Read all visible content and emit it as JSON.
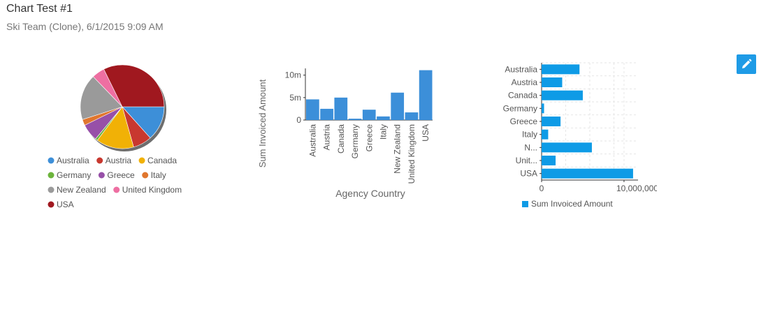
{
  "header": {
    "title": "Chart Test #1",
    "subtitle": "Ski Team (Clone), 6/1/2015 9:09 AM"
  },
  "toolbar": {
    "edit_icon": "pencil-icon"
  },
  "colors": {
    "Australia": "#3d8fd8",
    "Austria": "#c8382f",
    "Canada": "#f1b106",
    "Germany": "#6cb43c",
    "Greece": "#9750a8",
    "Italy": "#e0762e",
    "New Zealand": "#9a9a9a",
    "United Kingdom": "#ee6fa2",
    "USA": "#a0181f",
    "bar": "#3c8fd9",
    "hbar": "#0e9be6",
    "accent": "#1e9be6"
  },
  "chart_data": [
    {
      "type": "pie",
      "categories": [
        "Australia",
        "Austria",
        "Canada",
        "Germany",
        "Greece",
        "Italy",
        "New Zealand",
        "United Kingdom",
        "USA"
      ],
      "values": [
        4.6,
        2.5,
        5.0,
        0.3,
        2.3,
        0.8,
        6.1,
        1.7,
        11.1
      ],
      "legend": [
        "Australia",
        "Austria",
        "Canada",
        "Germany",
        "Greece",
        "Italy",
        "New Zealand",
        "United Kingdom",
        "USA"
      ],
      "legend_position": "bottom"
    },
    {
      "type": "bar",
      "categories": [
        "Australia",
        "Austria",
        "Canada",
        "Germany",
        "Greece",
        "Italy",
        "New Zealand",
        "United Kingdom",
        "USA"
      ],
      "values": [
        4.6,
        2.5,
        5.0,
        0.3,
        2.3,
        0.8,
        6.1,
        1.7,
        11.1
      ],
      "xlabel": "Agency Country",
      "ylabel": "Sum Invoiced Amount",
      "yticks": [
        0,
        5,
        10
      ],
      "ytick_labels": [
        "0",
        "5m",
        "10m"
      ],
      "ylim": [
        0,
        11.5
      ],
      "grid": false
    },
    {
      "type": "bar",
      "orientation": "horizontal",
      "categories": [
        "Australia",
        "Austria",
        "Canada",
        "Germany",
        "Greece",
        "Italy",
        "N...",
        "Unit...",
        "USA"
      ],
      "values": [
        4600000,
        2500000,
        5000000,
        300000,
        2300000,
        800000,
        6100000,
        1700000,
        11100000
      ],
      "xticks": [
        0,
        10000000
      ],
      "xtick_labels": [
        "0",
        "10,000,000"
      ],
      "xlim": [
        0,
        11700000
      ],
      "legend": [
        "Sum Invoiced Amount"
      ],
      "legend_position": "bottom",
      "grid": true
    }
  ]
}
